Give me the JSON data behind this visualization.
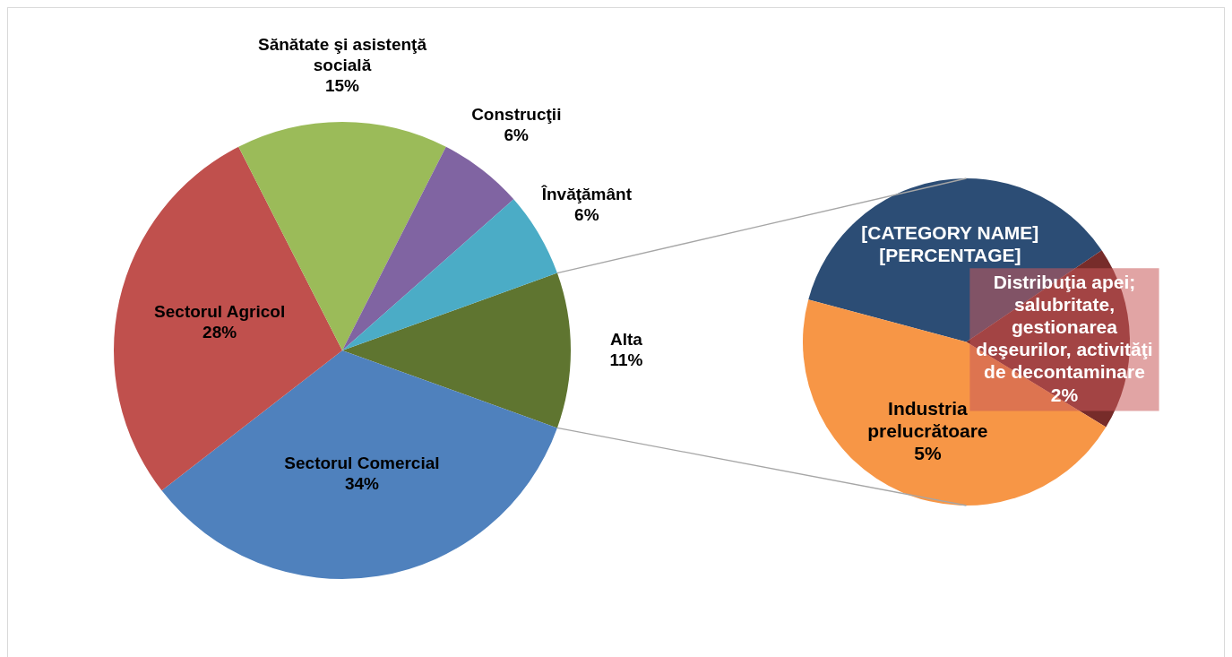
{
  "chart_data": [
    {
      "type": "pie",
      "categories": [
        "Alta",
        "Sectorul Comercial",
        "Sectorul Agricol",
        "Sănătate şi asistenţă socială",
        "Construcţii",
        "Învăţământ"
      ],
      "values": [
        11,
        34,
        28,
        15,
        6,
        6
      ],
      "colors": [
        "#5f7530",
        "#4f81bd",
        "#c0504d",
        "#9bbb59",
        "#8064a2",
        "#4bacc6"
      ],
      "value_labels": [
        "11%",
        "34%",
        "28%",
        "15%",
        "6%",
        "6%"
      ]
    },
    {
      "type": "pie",
      "categories": [
        "[CATEGORY NAME]",
        "Distribuţia apei; salubritate, gestionarea deşeurilor, activităţi de decontaminare",
        "Industria prelucrătoare"
      ],
      "values": [
        4,
        2,
        5
      ],
      "colors": [
        "#2c4d75",
        "#772c2a",
        "#f79646"
      ],
      "value_labels": [
        "[PERCENTAGE]",
        "2%",
        "5%"
      ]
    }
  ]
}
